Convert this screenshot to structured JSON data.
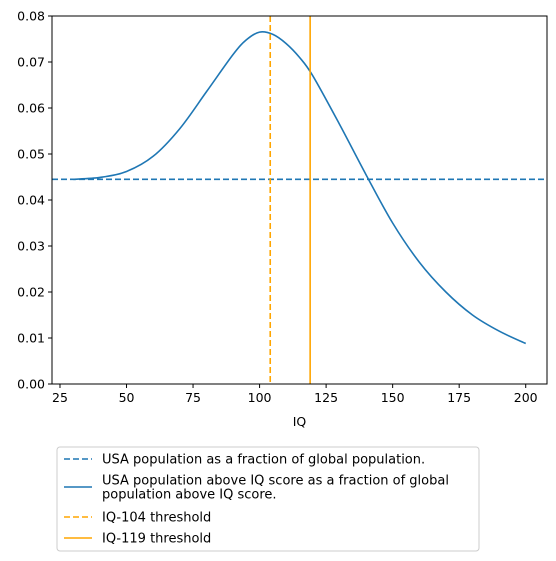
{
  "chart_data": {
    "type": "line",
    "title": "",
    "xlabel": "IQ",
    "ylabel": "",
    "xlim": [
      22,
      208
    ],
    "ylim": [
      0,
      0.08
    ],
    "xticks": [
      25,
      50,
      75,
      100,
      125,
      150,
      175,
      200
    ],
    "yticks": [
      0.0,
      0.01,
      0.02,
      0.03,
      0.04,
      0.05,
      0.06,
      0.07,
      0.08
    ],
    "xtick_labels": [
      "25",
      "50",
      "75",
      "100",
      "125",
      "150",
      "175",
      "200"
    ],
    "ytick_labels": [
      "0.00",
      "0.01",
      "0.02",
      "0.03",
      "0.04",
      "0.05",
      "0.06",
      "0.07",
      "0.08"
    ],
    "grid": false,
    "legend_position": "below the plot",
    "series": [
      {
        "name": "USA population as a fraction of global population.",
        "kind": "horizontal_line",
        "y": 0.0445,
        "color": "#1f77b4",
        "style": "dashed"
      },
      {
        "name": "USA population above IQ score as a fraction of global population above IQ score.",
        "legend_lines": [
          "USA population above IQ score as a fraction of global",
          "population above IQ score."
        ],
        "kind": "curve",
        "color": "#1f77b4",
        "style": "solid",
        "x": [
          30,
          40,
          50,
          60,
          70,
          80,
          90,
          95,
          100,
          105,
          110,
          115,
          120,
          130,
          140,
          150,
          160,
          170,
          180,
          190,
          200
        ],
        "y": [
          0.0445,
          0.0449,
          0.0462,
          0.0495,
          0.0555,
          0.0635,
          0.0716,
          0.0748,
          0.0765,
          0.076,
          0.074,
          0.071,
          0.067,
          0.0565,
          0.0455,
          0.035,
          0.0265,
          0.02,
          0.015,
          0.0115,
          0.0088
        ]
      },
      {
        "name": "IQ-104 threshold",
        "kind": "vertical_line",
        "x": 104,
        "color": "#ffa500",
        "style": "dashed"
      },
      {
        "name": "IQ-119 threshold",
        "kind": "vertical_line",
        "x": 119,
        "color": "#ffa500",
        "style": "solid"
      }
    ]
  }
}
